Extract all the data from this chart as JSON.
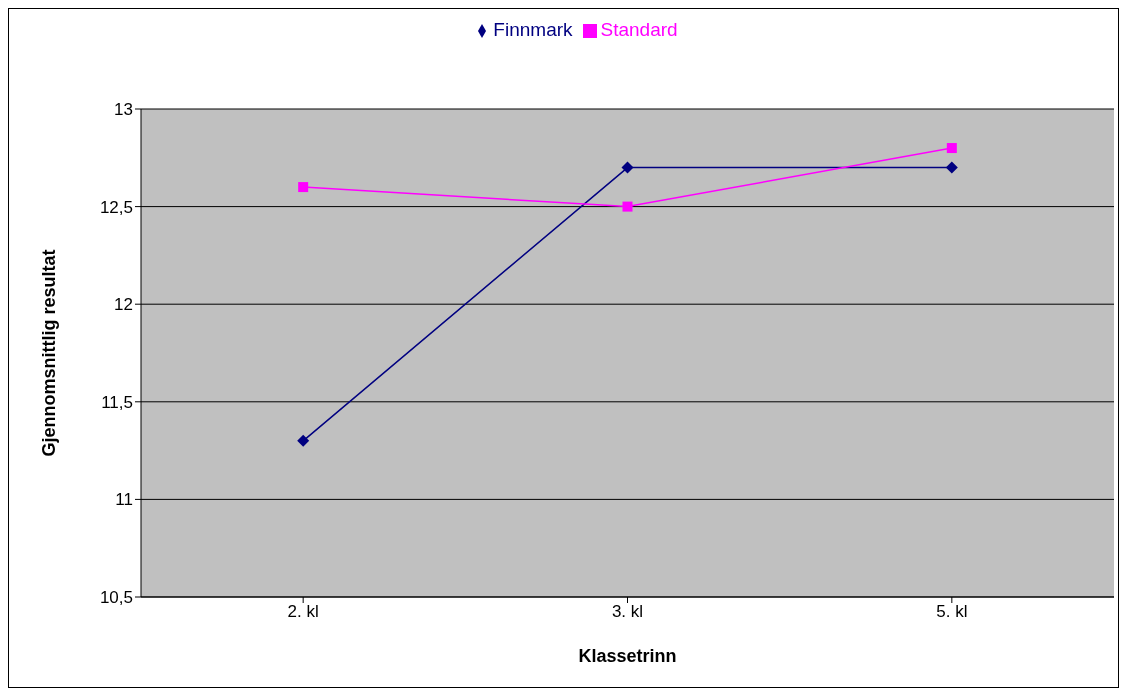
{
  "chart_data": {
    "type": "line",
    "categories": [
      "2. kl",
      "3. kl",
      "5. kl"
    ],
    "series": [
      {
        "name": "Finnmark",
        "color": "#000080",
        "marker": "diamond",
        "values": [
          11.3,
          12.7,
          12.7
        ]
      },
      {
        "name": "Standard",
        "color": "#ff00ff",
        "marker": "square",
        "values": [
          12.6,
          12.5,
          12.8
        ]
      }
    ],
    "xlabel": "Klassetrinn",
    "ylabel": "Gjennomsnittlig resultat",
    "ylim": [
      10.5,
      13
    ],
    "yticks": [
      {
        "value": 10.5,
        "label": "10,5"
      },
      {
        "value": 11,
        "label": "11"
      },
      {
        "value": 11.5,
        "label": "11,5"
      },
      {
        "value": 12,
        "label": "12"
      },
      {
        "value": 12.5,
        "label": "12,5"
      },
      {
        "value": 13,
        "label": "13"
      }
    ],
    "grid": "y",
    "legend": "top",
    "line_style": "solid"
  }
}
